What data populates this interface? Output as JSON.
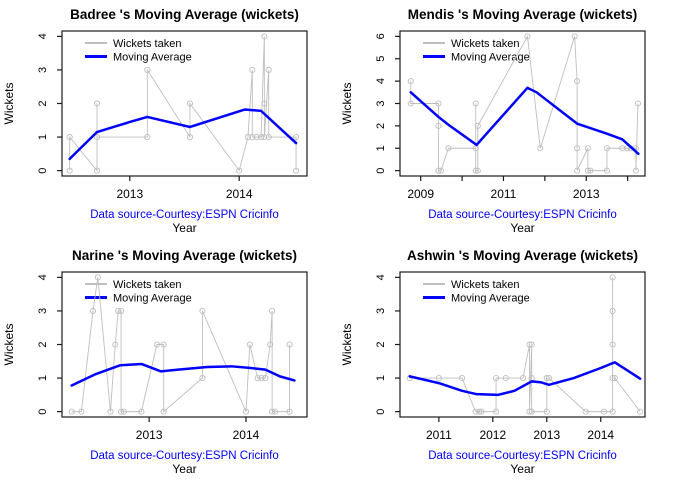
{
  "figure": {
    "caption": "Data source-Courtesy:ESPN Cricinfo",
    "caption_color": "#0000ff",
    "xlabel": "Year",
    "ylabel": "Wickets"
  },
  "legend": {
    "items": [
      {
        "label": "Wickets taken",
        "color": "#bebebe"
      },
      {
        "label": "Moving Average",
        "color": "#0000ff"
      }
    ]
  },
  "colors": {
    "wickets_line": "#bebebe",
    "marker_stroke": "#bdbdbd",
    "moving_average_line": "#0000ff",
    "axis": "#1a1a1a",
    "text": "#000000"
  },
  "chart_data": [
    {
      "type": "line",
      "player": "Badree",
      "title": "Badree 's Moving Average (wickets)",
      "xlabel": "Year",
      "ylabel": "Wickets",
      "xlim": [
        2012.38,
        2014.62
      ],
      "ylim": [
        0,
        4
      ],
      "yticks": [
        0,
        1,
        2,
        3,
        4
      ],
      "xticks": [
        {
          "value": 2013,
          "label": "2013"
        },
        {
          "value": 2014,
          "label": "2014"
        }
      ],
      "series": [
        {
          "name": "Wickets taken",
          "points": [
            [
              2012.45,
              0
            ],
            [
              2012.45,
              1
            ],
            [
              2012.7,
              0
            ],
            [
              2012.7,
              2
            ],
            [
              2012.7,
              1
            ],
            [
              2013.16,
              1
            ],
            [
              2013.16,
              3
            ],
            [
              2013.55,
              1
            ],
            [
              2013.55,
              2
            ],
            [
              2014.0,
              0
            ],
            [
              2014.08,
              1
            ],
            [
              2014.12,
              3
            ],
            [
              2014.12,
              1
            ],
            [
              2014.16,
              1
            ],
            [
              2014.2,
              1
            ],
            [
              2014.23,
              4
            ],
            [
              2014.23,
              2
            ],
            [
              2014.23,
              1
            ],
            [
              2014.27,
              3
            ],
            [
              2014.27,
              1
            ],
            [
              2014.52,
              1
            ],
            [
              2014.52,
              0
            ]
          ]
        },
        {
          "name": "Moving Average",
          "points": [
            [
              2012.45,
              0.35
            ],
            [
              2012.7,
              1.15
            ],
            [
              2013.0,
              1.45
            ],
            [
              2013.16,
              1.6
            ],
            [
              2013.55,
              1.3
            ],
            [
              2014.05,
              1.82
            ],
            [
              2014.2,
              1.78
            ],
            [
              2014.52,
              0.82
            ]
          ]
        }
      ]
    },
    {
      "type": "line",
      "player": "Mendis",
      "title": "Mendis 's Moving Average (wickets)",
      "xlabel": "Year",
      "ylabel": "Wickets",
      "xlim": [
        2008.5,
        2014.42
      ],
      "ylim": [
        0,
        6
      ],
      "yticks": [
        0,
        1,
        2,
        3,
        4,
        5,
        6
      ],
      "xticks": [
        {
          "value": 2009,
          "label": "2009"
        },
        {
          "value": 2010,
          "label": ""
        },
        {
          "value": 2011,
          "label": "2011"
        },
        {
          "value": 2012,
          "label": ""
        },
        {
          "value": 2013,
          "label": "2013"
        },
        {
          "value": 2014,
          "label": ""
        }
      ],
      "series": [
        {
          "name": "Wickets taken",
          "points": [
            [
              2008.76,
              4
            ],
            [
              2008.76,
              3
            ],
            [
              2009.43,
              3
            ],
            [
              2009.43,
              2
            ],
            [
              2009.43,
              0
            ],
            [
              2009.49,
              0
            ],
            [
              2009.67,
              1
            ],
            [
              2010.33,
              1
            ],
            [
              2010.33,
              3
            ],
            [
              2010.33,
              0
            ],
            [
              2010.38,
              0
            ],
            [
              2010.38,
              2
            ],
            [
              2011.58,
              6
            ],
            [
              2011.89,
              1
            ],
            [
              2012.72,
              6
            ],
            [
              2012.78,
              4
            ],
            [
              2012.78,
              1
            ],
            [
              2012.78,
              0
            ],
            [
              2013.04,
              1
            ],
            [
              2013.04,
              0
            ],
            [
              2013.1,
              0
            ],
            [
              2013.5,
              0
            ],
            [
              2013.5,
              1
            ],
            [
              2013.87,
              1
            ],
            [
              2013.99,
              1
            ],
            [
              2014.07,
              1
            ],
            [
              2014.2,
              1
            ],
            [
              2014.2,
              0
            ],
            [
              2014.25,
              3
            ]
          ]
        },
        {
          "name": "Moving Average",
          "points": [
            [
              2008.76,
              3.5
            ],
            [
              2009.43,
              2.4
            ],
            [
              2009.67,
              2.05
            ],
            [
              2010.35,
              1.15
            ],
            [
              2011.58,
              3.7
            ],
            [
              2011.8,
              3.5
            ],
            [
              2012.78,
              2.1
            ],
            [
              2013.5,
              1.65
            ],
            [
              2013.87,
              1.4
            ],
            [
              2014.26,
              0.75
            ]
          ]
        }
      ]
    },
    {
      "type": "line",
      "player": "Narine",
      "title": "Narine 's Moving Average (wickets)",
      "xlabel": "Year",
      "ylabel": "Wickets",
      "xlim": [
        2012.1,
        2014.63
      ],
      "ylim": [
        0,
        4
      ],
      "yticks": [
        0,
        1,
        2,
        3,
        4
      ],
      "xticks": [
        {
          "value": 2013,
          "label": "2013"
        },
        {
          "value": 2014,
          "label": "2014"
        }
      ],
      "series": [
        {
          "name": "Wickets taken",
          "points": [
            [
              2012.2,
              0
            ],
            [
              2012.3,
              0
            ],
            [
              2012.42,
              3
            ],
            [
              2012.47,
              4
            ],
            [
              2012.6,
              0
            ],
            [
              2012.65,
              2
            ],
            [
              2012.68,
              3
            ],
            [
              2012.71,
              3
            ],
            [
              2012.71,
              0
            ],
            [
              2012.74,
              0
            ],
            [
              2012.92,
              0
            ],
            [
              2013.08,
              2
            ],
            [
              2013.15,
              2
            ],
            [
              2013.15,
              0
            ],
            [
              2013.55,
              1
            ],
            [
              2013.55,
              3
            ],
            [
              2014.0,
              0
            ],
            [
              2014.04,
              2
            ],
            [
              2014.12,
              1
            ],
            [
              2014.16,
              1
            ],
            [
              2014.2,
              1
            ],
            [
              2014.25,
              2
            ],
            [
              2014.27,
              3
            ],
            [
              2014.27,
              0
            ],
            [
              2014.3,
              0
            ],
            [
              2014.45,
              0
            ],
            [
              2014.45,
              2
            ]
          ]
        },
        {
          "name": "Moving Average",
          "points": [
            [
              2012.2,
              0.78
            ],
            [
              2012.45,
              1.12
            ],
            [
              2012.7,
              1.38
            ],
            [
              2012.92,
              1.42
            ],
            [
              2013.12,
              1.2
            ],
            [
              2013.3,
              1.25
            ],
            [
              2013.6,
              1.33
            ],
            [
              2013.85,
              1.35
            ],
            [
              2014.05,
              1.3
            ],
            [
              2014.2,
              1.25
            ],
            [
              2014.35,
              1.05
            ],
            [
              2014.5,
              0.93
            ]
          ]
        }
      ]
    },
    {
      "type": "line",
      "player": "Ashwin",
      "title": "Ashwin 's Moving Average (wickets)",
      "xlabel": "Year",
      "ylabel": "Wickets",
      "xlim": [
        2010.28,
        2014.82
      ],
      "ylim": [
        0,
        4
      ],
      "yticks": [
        0,
        1,
        2,
        3,
        4
      ],
      "xticks": [
        {
          "value": 2011,
          "label": "2011"
        },
        {
          "value": 2012,
          "label": "2012"
        },
        {
          "value": 2013,
          "label": "2013"
        },
        {
          "value": 2014,
          "label": "2014"
        }
      ],
      "series": [
        {
          "name": "Wickets taken",
          "points": [
            [
              2010.46,
              1
            ],
            [
              2011.0,
              1
            ],
            [
              2011.43,
              1
            ],
            [
              2011.68,
              0
            ],
            [
              2011.75,
              0
            ],
            [
              2011.79,
              0
            ],
            [
              2012.06,
              0
            ],
            [
              2012.06,
              1
            ],
            [
              2012.24,
              1
            ],
            [
              2012.56,
              1
            ],
            [
              2012.68,
              2
            ],
            [
              2012.68,
              0
            ],
            [
              2012.72,
              2
            ],
            [
              2012.72,
              1
            ],
            [
              2012.72,
              0
            ],
            [
              2013.0,
              0
            ],
            [
              2013.0,
              1
            ],
            [
              2013.04,
              1
            ],
            [
              2013.72,
              0
            ],
            [
              2014.06,
              0
            ],
            [
              2014.22,
              0
            ],
            [
              2014.22,
              4
            ],
            [
              2014.22,
              3
            ],
            [
              2014.22,
              2
            ],
            [
              2014.22,
              1
            ],
            [
              2014.26,
              1
            ],
            [
              2014.73,
              0
            ]
          ]
        },
        {
          "name": "Moving Average",
          "points": [
            [
              2010.46,
              1.05
            ],
            [
              2011.0,
              0.85
            ],
            [
              2011.43,
              0.62
            ],
            [
              2011.7,
              0.52
            ],
            [
              2012.1,
              0.5
            ],
            [
              2012.4,
              0.62
            ],
            [
              2012.72,
              0.9
            ],
            [
              2012.9,
              0.87
            ],
            [
              2013.04,
              0.8
            ],
            [
              2013.5,
              1.0
            ],
            [
              2014.0,
              1.3
            ],
            [
              2014.26,
              1.47
            ],
            [
              2014.73,
              0.98
            ]
          ]
        }
      ]
    }
  ]
}
